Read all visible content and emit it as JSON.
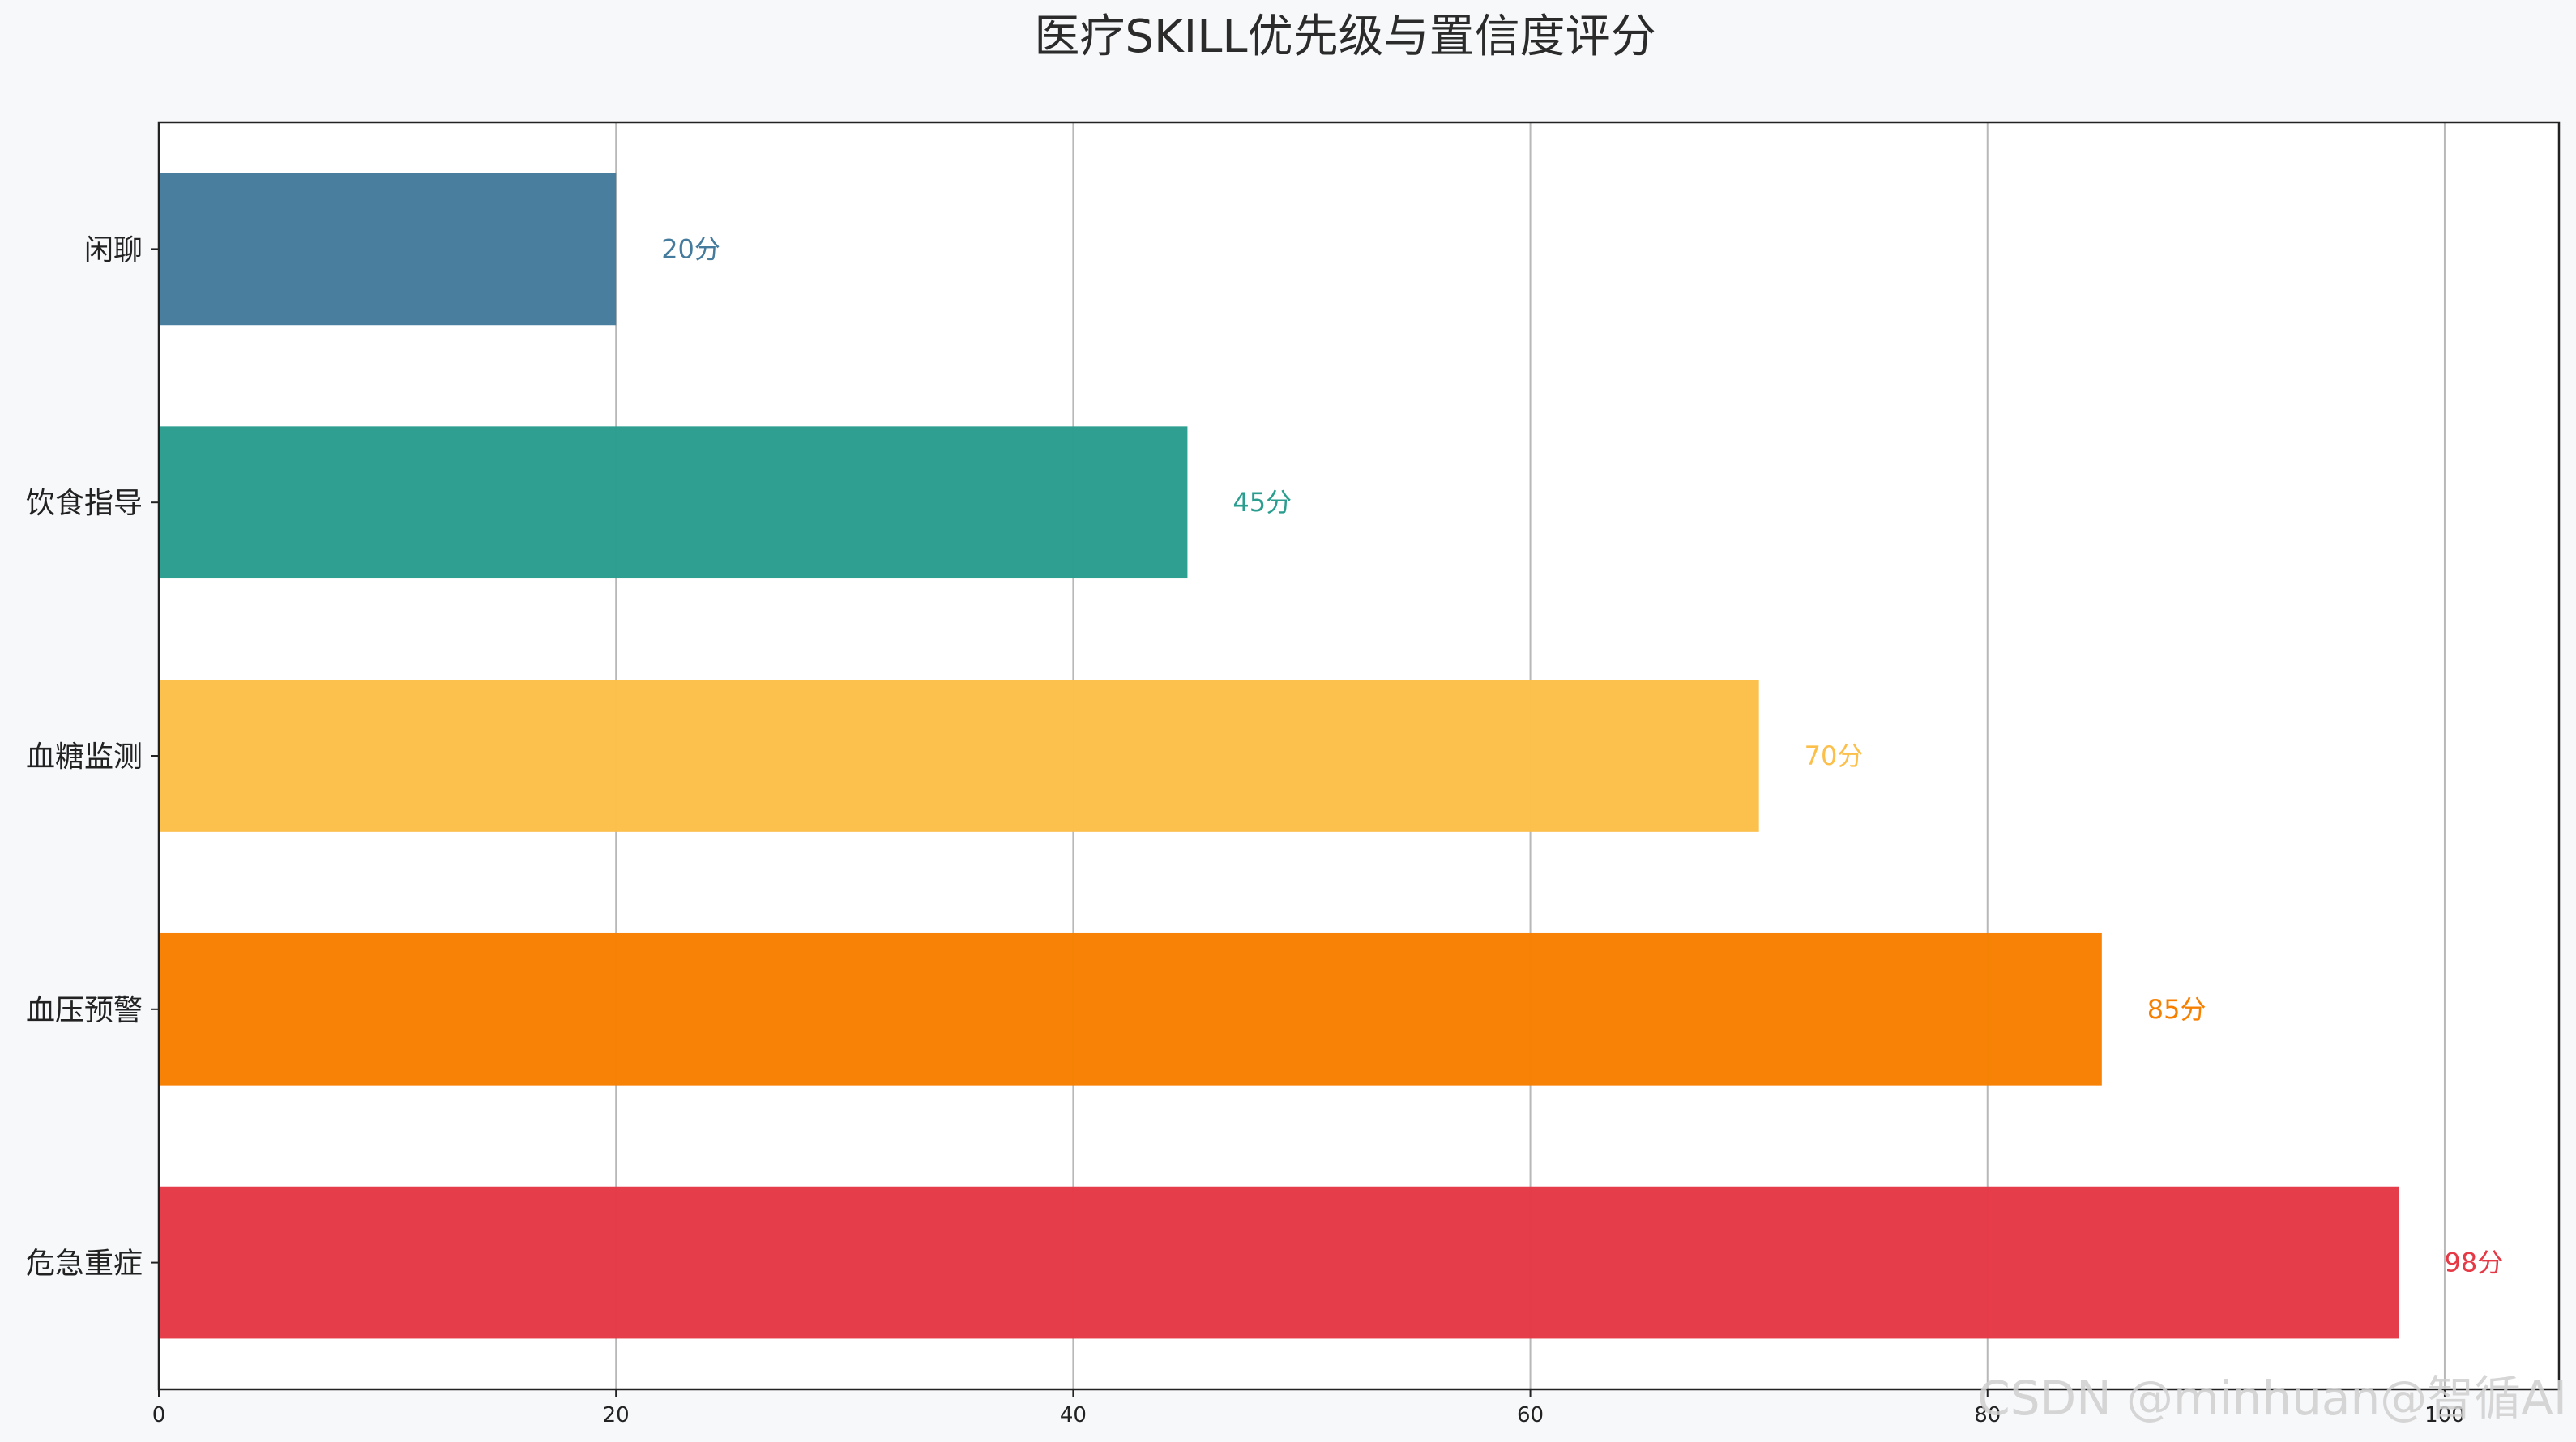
{
  "chart_data": {
    "type": "bar",
    "orientation": "horizontal",
    "title": "医疗SKILL优先级与置信度评分",
    "xlabel": "",
    "ylabel": "",
    "categories": [
      "危急重症",
      "血压预警",
      "血糖监测",
      "饮食指导",
      "闲聊"
    ],
    "values": [
      98,
      85,
      70,
      45,
      20
    ],
    "data_labels": [
      "98分",
      "85分",
      "70分",
      "45分",
      "20分"
    ],
    "colors": [
      "#e63946",
      "#f77f00",
      "#fcbf49",
      "#2a9d8f",
      "#457b9d"
    ],
    "xlim": [
      0,
      105
    ],
    "xticks": [
      0,
      20,
      40,
      60,
      80,
      100
    ],
    "xtick_labels": [
      "0",
      "20",
      "40",
      "60",
      "80",
      "100"
    ],
    "grid": "x",
    "legend": "none"
  },
  "watermark": "CSDN @minhuan@智循AI"
}
